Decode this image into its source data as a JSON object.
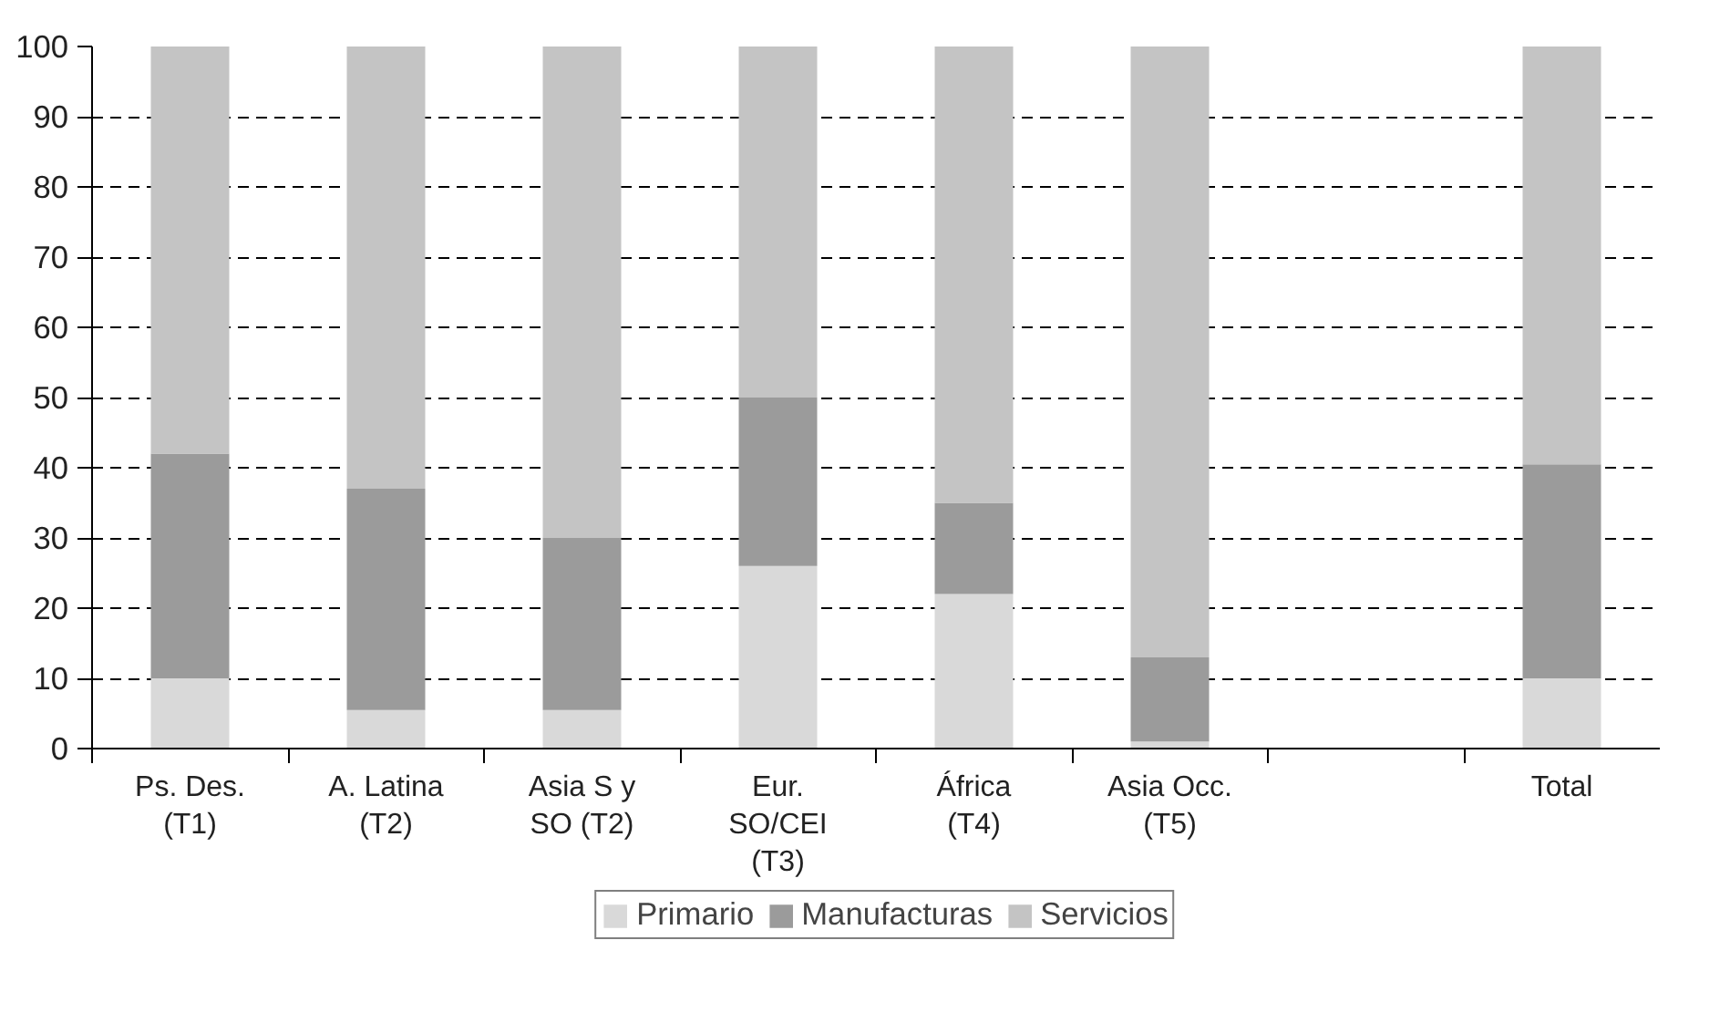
{
  "chart_data": {
    "type": "bar",
    "stacked": true,
    "categories": [
      "Ps. Des.\n(T1)",
      "A. Latina\n(T2)",
      "Asia S y\nSO (T2)",
      "Eur.\nSO/CEI\n(T3)",
      "África\n(T4)",
      "Asia Occ.\n(T5)",
      null,
      "Total"
    ],
    "series": [
      {
        "name": "Primario",
        "color": "#d9d9d9",
        "values": [
          10,
          5.5,
          5.5,
          26,
          22,
          1,
          null,
          10
        ]
      },
      {
        "name": "Manufacturas",
        "color": "#9b9b9b",
        "values": [
          32,
          31.5,
          24.5,
          24,
          13,
          12,
          null,
          30.5
        ]
      },
      {
        "name": "Servicios",
        "color": "#c4c4c4",
        "values": [
          58,
          63,
          70,
          50,
          65,
          87,
          null,
          59.5
        ]
      }
    ],
    "ylim": [
      0,
      100
    ],
    "yticks": [
      0,
      10,
      20,
      30,
      40,
      50,
      60,
      70,
      80,
      90,
      100
    ],
    "grid": "y",
    "legend": "bottom"
  }
}
